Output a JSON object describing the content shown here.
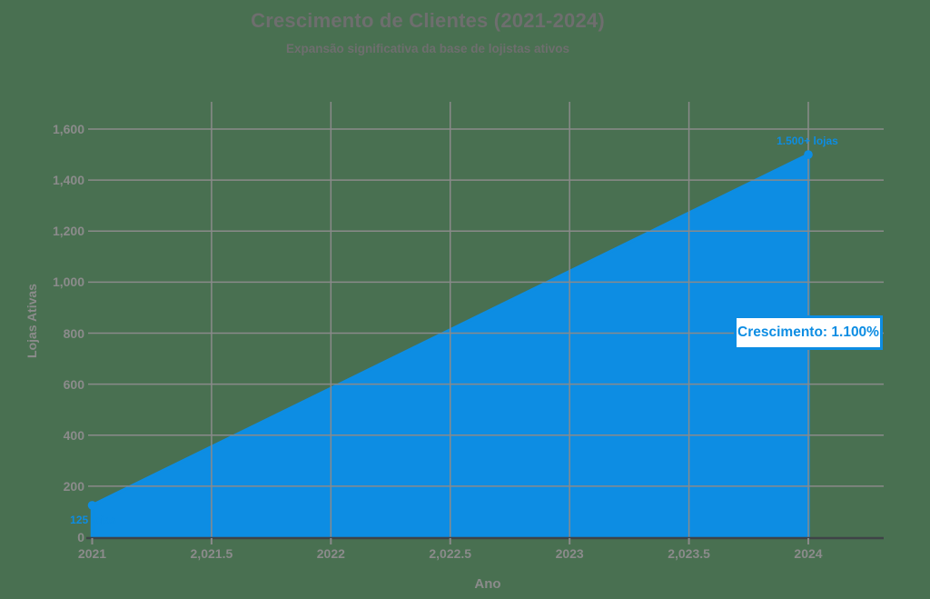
{
  "chart_data": {
    "type": "area",
    "title": "Crescimento de Clientes (2021-2024)",
    "subtitle": "Expansão significativa da base de lojistas ativos",
    "xlabel": "Ano",
    "ylabel": "Lojas Ativas",
    "x": [
      2021,
      2024
    ],
    "values": [
      125,
      1500
    ],
    "point_labels": [
      "125 lojas",
      "1.500+ lojas"
    ],
    "annotation": "Crescimento: 1.100%",
    "xlim": [
      2021,
      2024
    ],
    "ylim": [
      0,
      1600
    ],
    "xticks": [
      {
        "value": 2021,
        "label": "2021"
      },
      {
        "value": 2021.5,
        "label": "2,021.5"
      },
      {
        "value": 2022,
        "label": "2022"
      },
      {
        "value": 2022.5,
        "label": "2,022.5"
      },
      {
        "value": 2023,
        "label": "2023"
      },
      {
        "value": 2023.5,
        "label": "2,023.5"
      },
      {
        "value": 2024,
        "label": "2024"
      }
    ],
    "yticks": [
      {
        "value": 0,
        "label": "0"
      },
      {
        "value": 200,
        "label": "200"
      },
      {
        "value": 400,
        "label": "400"
      },
      {
        "value": 600,
        "label": "600"
      },
      {
        "value": 800,
        "label": "800"
      },
      {
        "value": 1000,
        "label": "1,000"
      },
      {
        "value": 1200,
        "label": "1,200"
      },
      {
        "value": 1400,
        "label": "1,400"
      },
      {
        "value": 1600,
        "label": "1,600"
      }
    ],
    "grid": true,
    "legend": false,
    "colors": {
      "area": "#0D8DE3",
      "background": "#497051",
      "grid": "#8A8A8A",
      "axis_line": "#3F4347",
      "title_text": "#6E6E6E",
      "tick_text": "#8B8B8B",
      "annotation_bg": "#FFFFFF",
      "annotation_text": "#0D8DE3"
    }
  }
}
